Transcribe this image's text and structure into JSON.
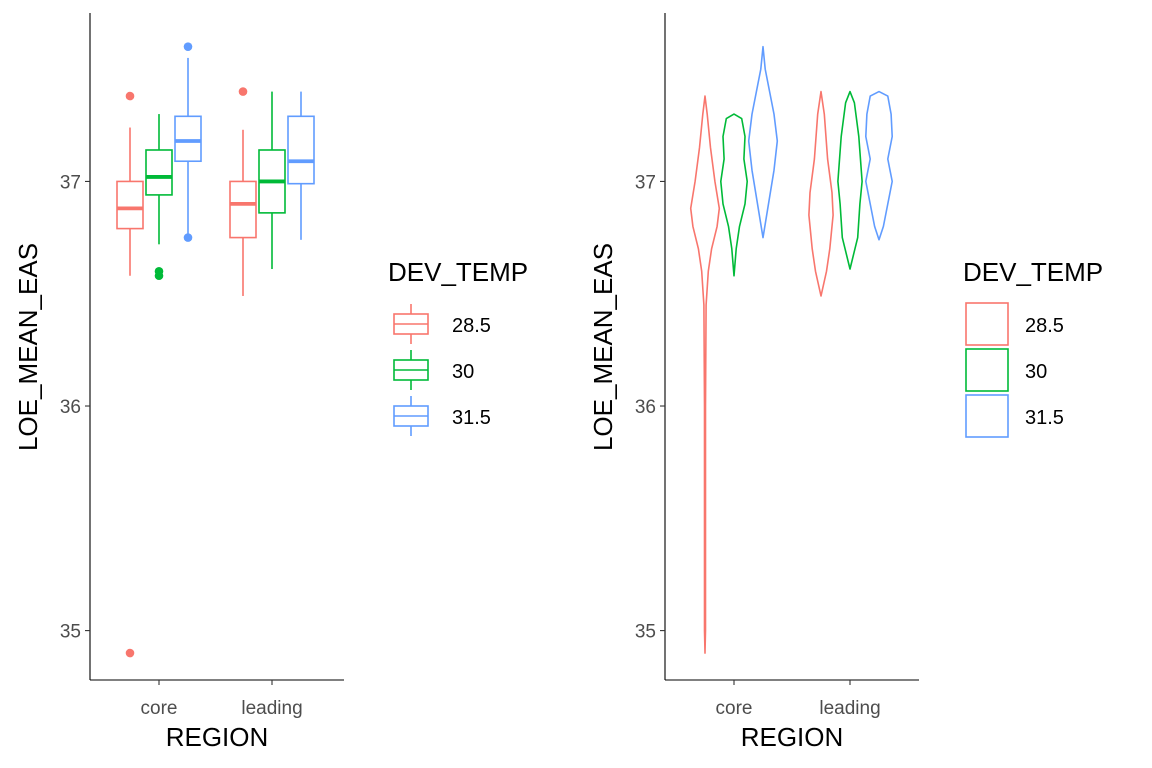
{
  "chart_data": [
    {
      "type": "box",
      "xlabel": "REGION",
      "ylabel": "LOE_MEAN_EAS",
      "categories": [
        "core",
        "leading"
      ],
      "y_ticks": [
        35,
        36,
        37
      ],
      "ylim": [
        34.78,
        37.75
      ],
      "grid": false,
      "legend": {
        "title": "DEV_TEMP",
        "position": "right",
        "entries": [
          "28.5",
          "30",
          "31.5"
        ]
      },
      "series": [
        {
          "name": "28.5",
          "color": "#F8766D",
          "boxes": [
            {
              "category": "core",
              "whisker_low": 36.58,
              "q1": 36.79,
              "median": 36.88,
              "q3": 37.0,
              "whisker_high": 37.24,
              "outliers": [
                37.38,
                34.9
              ]
            },
            {
              "category": "leading",
              "whisker_low": 36.49,
              "q1": 36.75,
              "median": 36.9,
              "q3": 37.0,
              "whisker_high": 37.23,
              "outliers": [
                37.4
              ]
            }
          ]
        },
        {
          "name": "30",
          "color": "#00BA38",
          "boxes": [
            {
              "category": "core",
              "whisker_low": 36.72,
              "q1": 36.94,
              "median": 37.02,
              "q3": 37.14,
              "whisker_high": 37.3,
              "outliers": [
                36.6,
                36.58
              ]
            },
            {
              "category": "leading",
              "whisker_low": 36.61,
              "q1": 36.86,
              "median": 37.0,
              "q3": 37.14,
              "whisker_high": 37.4,
              "outliers": []
            }
          ]
        },
        {
          "name": "31.5",
          "color": "#619CFF",
          "boxes": [
            {
              "category": "core",
              "whisker_low": 36.75,
              "q1": 37.09,
              "median": 37.18,
              "q3": 37.29,
              "whisker_high": 37.55,
              "outliers": [
                37.6,
                36.75
              ]
            },
            {
              "category": "leading",
              "whisker_low": 36.74,
              "q1": 36.99,
              "median": 37.09,
              "q3": 37.29,
              "whisker_high": 37.4,
              "outliers": []
            }
          ]
        }
      ]
    },
    {
      "type": "violin",
      "xlabel": "REGION",
      "ylabel": "LOE_MEAN_EAS",
      "categories": [
        "core",
        "leading"
      ],
      "y_ticks": [
        35,
        36,
        37
      ],
      "ylim": [
        34.78,
        37.75
      ],
      "grid": false,
      "legend": {
        "title": "DEV_TEMP",
        "position": "right",
        "entries": [
          "28.5",
          "30",
          "31.5"
        ]
      },
      "series": [
        {
          "name": "28.5",
          "color": "#F8766D",
          "violins": [
            {
              "category": "core",
              "profile": [
                [
                  37.38,
                  0
                ],
                [
                  37.3,
                  0.02
                ],
                [
                  37.15,
                  0.05
                ],
                [
                  37.0,
                  0.09
                ],
                [
                  36.88,
                  0.13
                ],
                [
                  36.8,
                  0.11
                ],
                [
                  36.7,
                  0.06
                ],
                [
                  36.6,
                  0.03
                ],
                [
                  36.45,
                  0.01
                ],
                [
                  36.0,
                  0.005
                ],
                [
                  35.5,
                  0.005
                ],
                [
                  35.0,
                  0.005
                ],
                [
                  34.9,
                  0
                ]
              ]
            },
            {
              "category": "leading",
              "profile": [
                [
                  37.4,
                  0
                ],
                [
                  37.3,
                  0.03
                ],
                [
                  37.1,
                  0.06
                ],
                [
                  36.95,
                  0.1
                ],
                [
                  36.85,
                  0.11
                ],
                [
                  36.7,
                  0.08
                ],
                [
                  36.6,
                  0.05
                ],
                [
                  36.49,
                  0
                ]
              ]
            }
          ]
        },
        {
          "name": "30",
          "color": "#00BA38",
          "violins": [
            {
              "category": "core",
              "profile": [
                [
                  37.3,
                  0
                ],
                [
                  37.28,
                  0.07
                ],
                [
                  37.2,
                  0.1
                ],
                [
                  37.1,
                  0.09
                ],
                [
                  37.0,
                  0.12
                ],
                [
                  36.9,
                  0.1
                ],
                [
                  36.8,
                  0.05
                ],
                [
                  36.7,
                  0.02
                ],
                [
                  36.58,
                  0
                ]
              ]
            },
            {
              "category": "leading",
              "profile": [
                [
                  37.4,
                  0
                ],
                [
                  37.35,
                  0.04
                ],
                [
                  37.2,
                  0.08
                ],
                [
                  37.0,
                  0.11
                ],
                [
                  36.9,
                  0.09
                ],
                [
                  36.75,
                  0.07
                ],
                [
                  36.61,
                  0
                ]
              ]
            }
          ]
        },
        {
          "name": "31.5",
          "color": "#619CFF",
          "violins": [
            {
              "category": "core",
              "profile": [
                [
                  37.6,
                  0
                ],
                [
                  37.5,
                  0.02
                ],
                [
                  37.4,
                  0.06
                ],
                [
                  37.3,
                  0.1
                ],
                [
                  37.18,
                  0.13
                ],
                [
                  37.05,
                  0.1
                ],
                [
                  36.9,
                  0.05
                ],
                [
                  36.75,
                  0
                ]
              ]
            },
            {
              "category": "leading",
              "profile": [
                [
                  37.4,
                  0
                ],
                [
                  37.38,
                  0.08
                ],
                [
                  37.3,
                  0.11
                ],
                [
                  37.2,
                  0.12
                ],
                [
                  37.1,
                  0.08
                ],
                [
                  37.0,
                  0.12
                ],
                [
                  36.9,
                  0.08
                ],
                [
                  36.8,
                  0.04
                ],
                [
                  36.74,
                  0
                ]
              ]
            }
          ]
        }
      ]
    }
  ]
}
